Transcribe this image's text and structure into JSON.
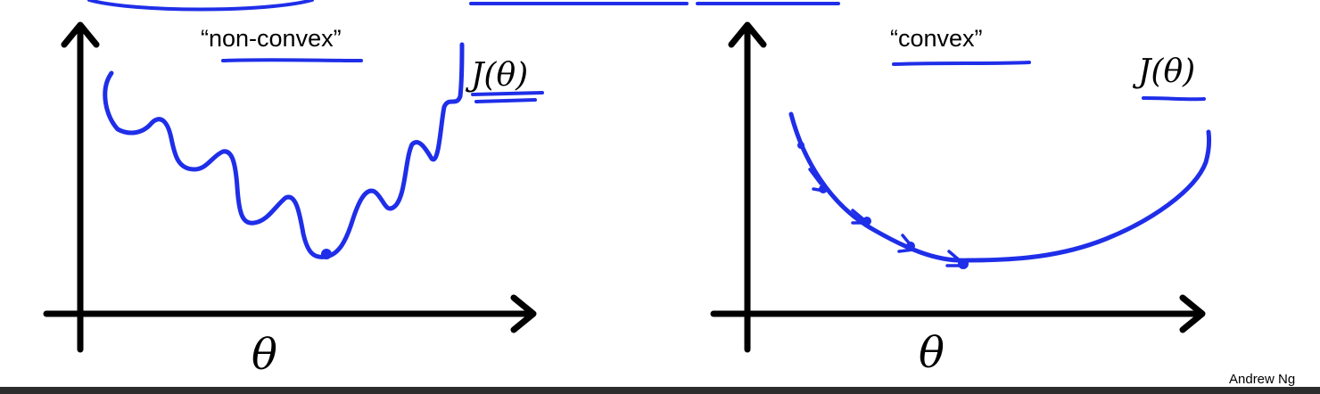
{
  "left_panel": {
    "label": "“non-convex”",
    "function_label": "J(θ)",
    "axis_label": "θ"
  },
  "right_panel": {
    "label": "“convex”",
    "function_label": "J(θ)",
    "axis_label": "θ"
  },
  "footer": {
    "credit": "Andrew Ng"
  },
  "colors": {
    "ink": "#1f2ee8",
    "axes": "#000000",
    "bottom_bar": "#2d2d2d"
  }
}
